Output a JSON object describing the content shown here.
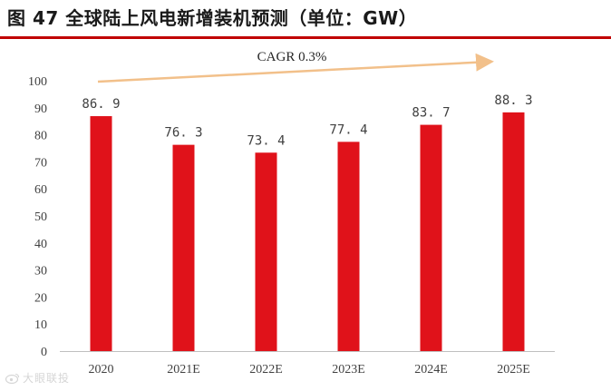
{
  "figure": {
    "title": "图 47  全球陆上风电新增装机预测（单位：GW）",
    "rule_color": "#c00000"
  },
  "watermark": {
    "text": "大眼联投",
    "icon": "weibo-icon"
  },
  "chart_data": {
    "type": "bar",
    "categories": [
      "2020",
      "2021E",
      "2022E",
      "2023E",
      "2024E",
      "2025E"
    ],
    "values": [
      86.9,
      76.3,
      73.4,
      77.4,
      83.7,
      88.3
    ],
    "value_labels": [
      "86. 9",
      "76. 3",
      "73. 4",
      "77. 4",
      "83. 7",
      "88. 3"
    ],
    "bar_color": "#e0121a",
    "ylim": [
      0,
      100
    ],
    "yticks": [
      0,
      10,
      20,
      30,
      40,
      50,
      60,
      70,
      80,
      90,
      100
    ],
    "grid": false,
    "annotation": {
      "text": "CAGR 0.3%",
      "arrow_color": "#f2c08a"
    }
  }
}
